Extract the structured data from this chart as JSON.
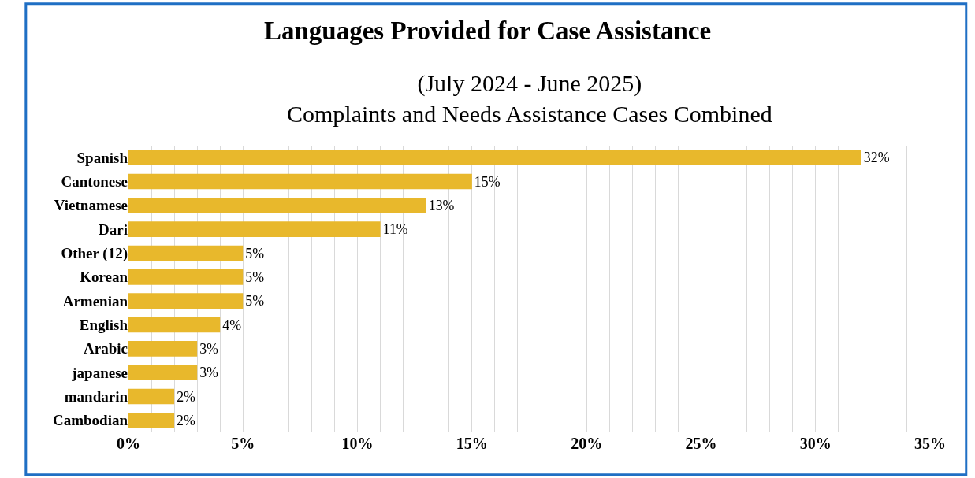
{
  "chart_data": {
    "type": "bar",
    "orientation": "horizontal",
    "title": "Languages Provided for Case Assistance",
    "subtitle": "(July 2024 - June 2025)\nComplaints and Needs Assistance Cases Combined",
    "categories": [
      "Spanish",
      "Cantonese",
      "Vietnamese",
      "Dari",
      "Other (12)",
      "Korean",
      "Armenian",
      "English",
      "Arabic",
      "japanese",
      "mandarin",
      "Cambodian"
    ],
    "values": [
      32,
      15,
      13,
      11,
      5,
      5,
      5,
      4,
      3,
      3,
      2,
      2
    ],
    "value_labels": [
      "32%",
      "15%",
      "13%",
      "11%",
      "5%",
      "5%",
      "5%",
      "4%",
      "3%",
      "3%",
      "2%",
      "2%"
    ],
    "color": "#e8b82c",
    "xlim": [
      0,
      35
    ],
    "xticks": [
      {
        "value": 0,
        "label": "0%"
      },
      {
        "value": 1,
        "label": null
      },
      {
        "value": 2,
        "label": null
      },
      {
        "value": 3,
        "label": null
      },
      {
        "value": 4,
        "label": null
      },
      {
        "value": 5,
        "label": "5%"
      },
      {
        "value": 6,
        "label": null
      },
      {
        "value": 7,
        "label": null
      },
      {
        "value": 8,
        "label": null
      },
      {
        "value": 9,
        "label": null
      },
      {
        "value": 10,
        "label": "10%"
      },
      {
        "value": 11,
        "label": null
      },
      {
        "value": 12,
        "label": null
      },
      {
        "value": 13,
        "label": null
      },
      {
        "value": 14,
        "label": null
      },
      {
        "value": 15,
        "label": "15%"
      },
      {
        "value": 16,
        "label": null
      },
      {
        "value": 17,
        "label": null
      },
      {
        "value": 18,
        "label": null
      },
      {
        "value": 19,
        "label": null
      },
      {
        "value": 20,
        "label": "20%"
      },
      {
        "value": 21,
        "label": null
      },
      {
        "value": 22,
        "label": null
      },
      {
        "value": 23,
        "label": null
      },
      {
        "value": 24,
        "label": null
      },
      {
        "value": 25,
        "label": "25%"
      },
      {
        "value": 26,
        "label": null
      },
      {
        "value": 27,
        "label": null
      },
      {
        "value": 28,
        "label": null
      },
      {
        "value": 29,
        "label": null
      },
      {
        "value": 30,
        "label": "30%"
      },
      {
        "value": 31,
        "label": null
      },
      {
        "value": 32,
        "label": null
      },
      {
        "value": 33,
        "label": null
      },
      {
        "value": 34,
        "label": null
      },
      {
        "value": 35,
        "label": "35%"
      }
    ],
    "grid": "x",
    "legend": false
  }
}
